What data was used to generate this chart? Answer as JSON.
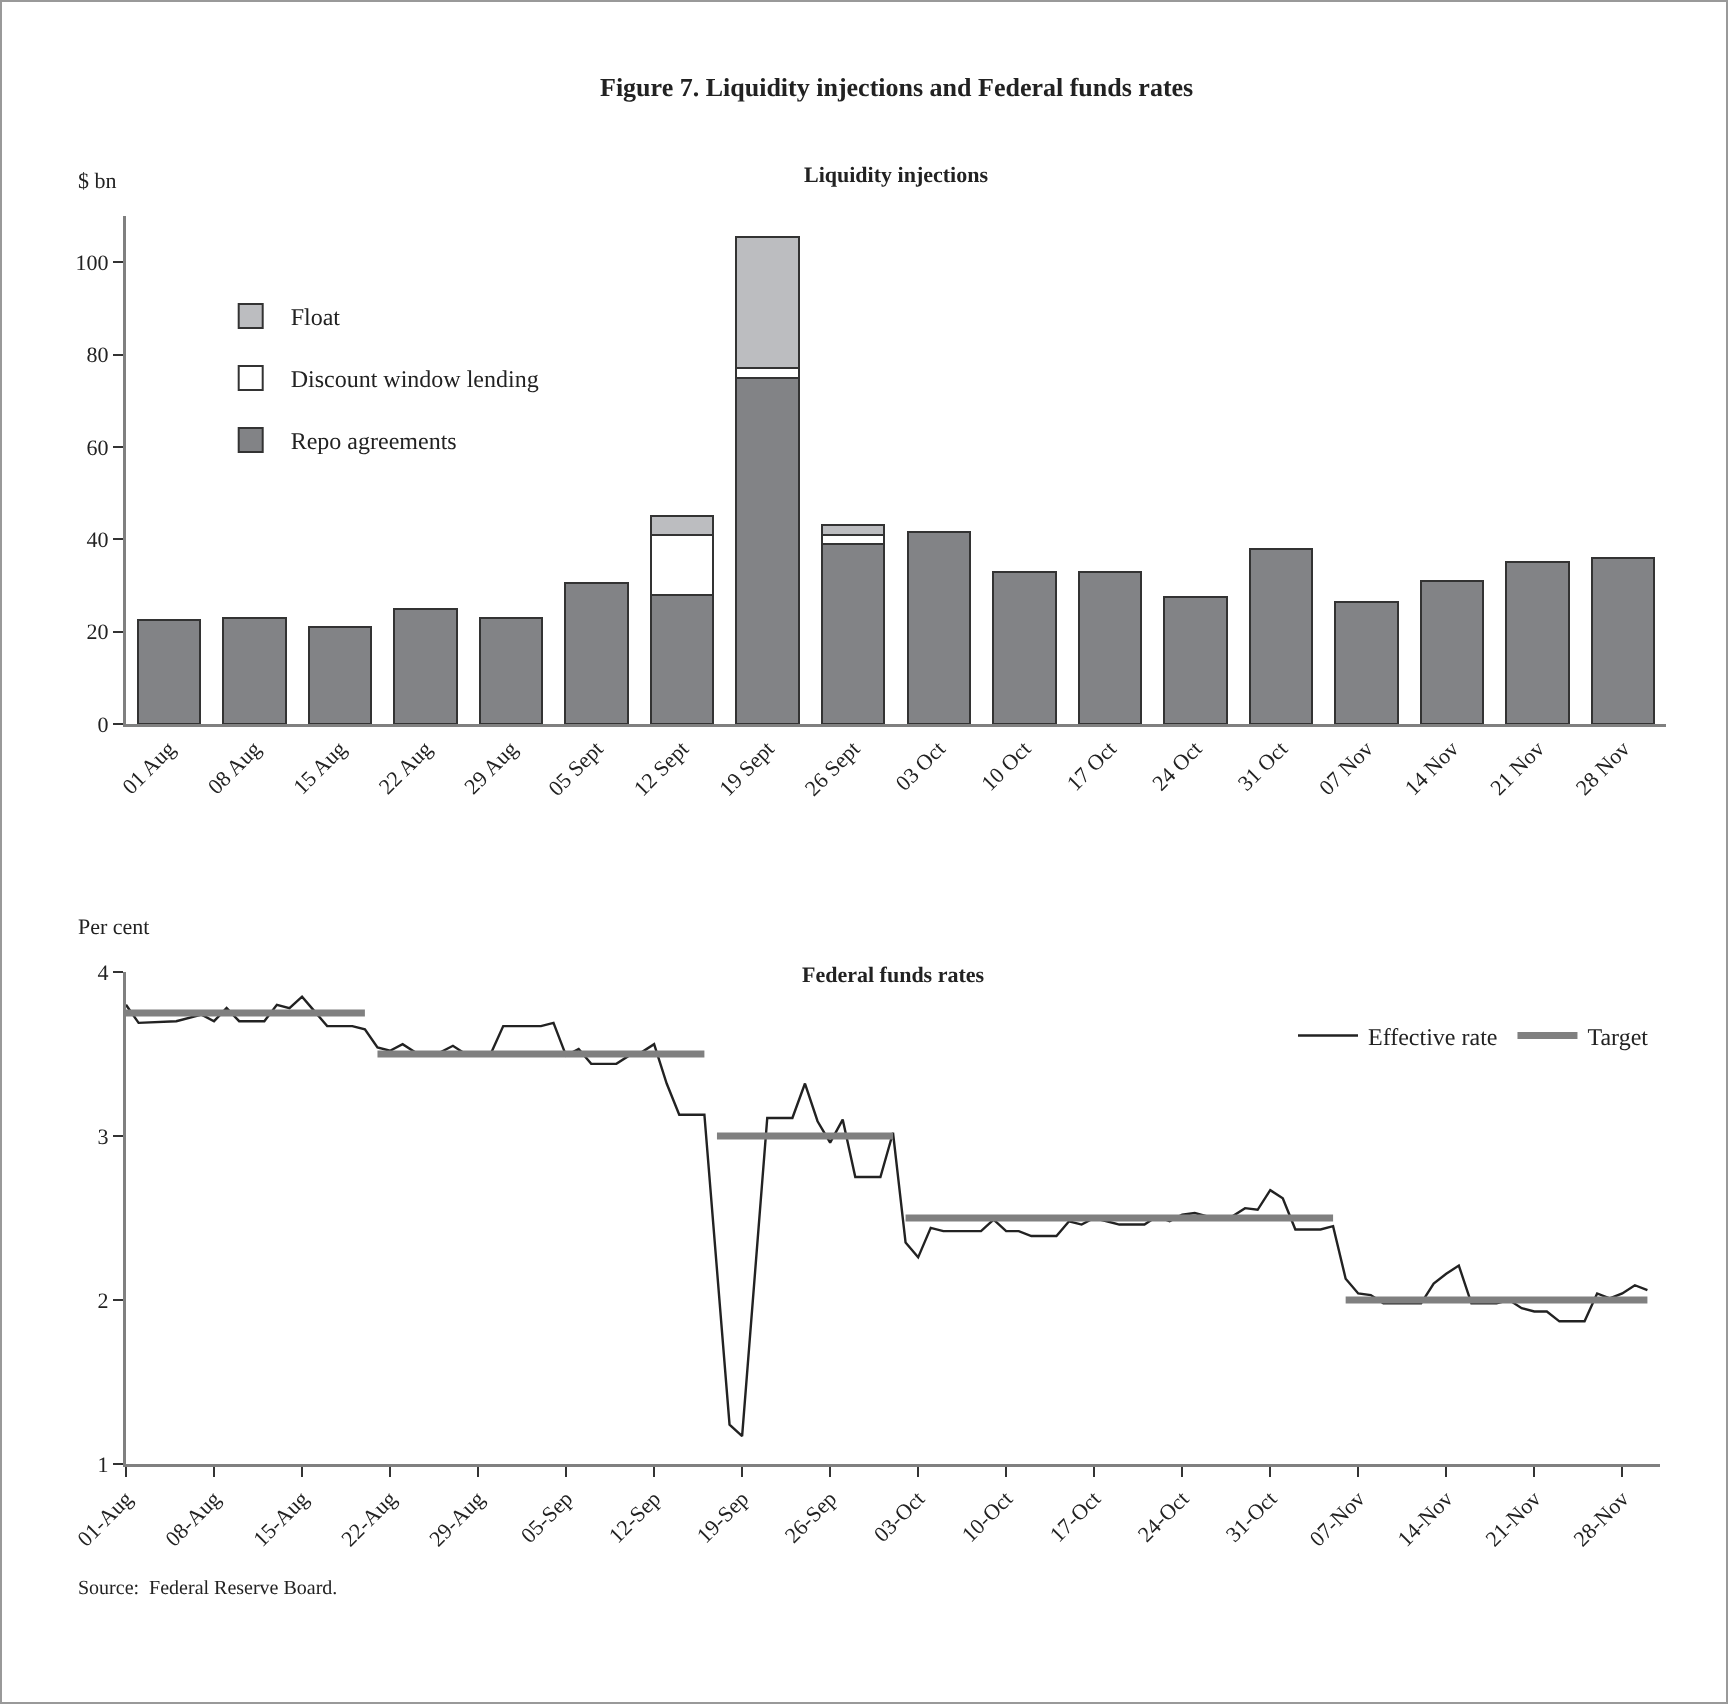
{
  "chart_data": [
    {
      "type": "bar",
      "title": "Figure 7. Liquidity injections and Federal funds rates",
      "subtitle": "Liquidity injections",
      "ylabel": "$ bn",
      "categories": [
        "01 Aug",
        "08 Aug",
        "15 Aug",
        "22 Aug",
        "29 Aug",
        "05 Sept",
        "12 Sept",
        "19 Sept",
        "26 Sept",
        "03 Oct",
        "10 Oct",
        "17 Oct",
        "24 Oct",
        "31 Oct",
        "07 Nov",
        "14 Nov",
        "21 Nov",
        "28 Nov"
      ],
      "stacked": true,
      "legend": "top left",
      "ylim": [
        0,
        110
      ],
      "yticks": [
        0,
        20,
        40,
        60,
        80,
        100
      ],
      "series": [
        {
          "name": "Repo agreements",
          "color": "#828386",
          "values": [
            22.5,
            23,
            21,
            25,
            23,
            30.5,
            28,
            75,
            39,
            41.5,
            33,
            33,
            27.5,
            38,
            26.5,
            31,
            35,
            36
          ]
        },
        {
          "name": "Discount window lending",
          "color": "#ffffff",
          "values": [
            null,
            null,
            null,
            null,
            null,
            null,
            13,
            2,
            2,
            null,
            null,
            null,
            null,
            null,
            null,
            null,
            null,
            null
          ]
        },
        {
          "name": "Float",
          "color": "#bcbdc0",
          "values": [
            null,
            null,
            null,
            null,
            null,
            null,
            4,
            28.5,
            2,
            null,
            null,
            null,
            null,
            null,
            null,
            null,
            null,
            null
          ]
        }
      ]
    },
    {
      "type": "line",
      "title": "Federal funds rates",
      "ylabel": "Per cent",
      "legend": "top right",
      "line_style": "solid",
      "xlim": [
        "--08-01",
        "--12-01"
      ],
      "xticks": [
        {
          "value": "--08-01",
          "label": "01-Aug"
        },
        {
          "value": "--08-08",
          "label": "08-Aug"
        },
        {
          "value": "--08-15",
          "label": "15-Aug"
        },
        {
          "value": "--08-22",
          "label": "22-Aug"
        },
        {
          "value": "--08-29",
          "label": "29-Aug"
        },
        {
          "value": "--09-05",
          "label": "05-Sep"
        },
        {
          "value": "--09-12",
          "label": "12-Sep"
        },
        {
          "value": "--09-19",
          "label": "19-Sep"
        },
        {
          "value": "--09-26",
          "label": "26-Sep"
        },
        {
          "value": "--10-03",
          "label": "03-Oct"
        },
        {
          "value": "--10-10",
          "label": "10-Oct"
        },
        {
          "value": "--10-17",
          "label": "17-Oct"
        },
        {
          "value": "--10-24",
          "label": "24-Oct"
        },
        {
          "value": "--10-31",
          "label": "31-Oct"
        },
        {
          "value": "--11-07",
          "label": "07-Nov"
        },
        {
          "value": "--11-14",
          "label": "14-Nov"
        },
        {
          "value": "--11-21",
          "label": "21-Nov"
        },
        {
          "value": "--11-28",
          "label": "28-Nov"
        }
      ],
      "ylim": [
        1,
        4
      ],
      "yticks": [
        1,
        2,
        3,
        4
      ],
      "series": [
        {
          "name": "Effective rate",
          "color": "#222222",
          "x": [
            "--08-01",
            "--08-02",
            "--08-05",
            "--08-07",
            "--08-08",
            "--08-09",
            "--08-10",
            "--08-12",
            "--08-13",
            "--08-14",
            "--08-15",
            "--08-16",
            "--08-17",
            "--08-19",
            "--08-20",
            "--08-21",
            "--08-22",
            "--08-23",
            "--08-24",
            "--08-26",
            "--08-27",
            "--08-28",
            "--08-30",
            "--08-31",
            "--09-03",
            "--09-04",
            "--09-05",
            "--09-06",
            "--09-07",
            "--09-09",
            "--09-10",
            "--09-11",
            "--09-12",
            "--09-13",
            "--09-14",
            "--09-16",
            "--09-18",
            "--09-19",
            "--09-21",
            "--09-23",
            "--09-24",
            "--09-25",
            "--09-26",
            "--09-27",
            "--09-28",
            "--09-30",
            "--10-01",
            "--10-02",
            "--10-03",
            "--10-04",
            "--10-05",
            "--10-08",
            "--10-09",
            "--10-10",
            "--10-11",
            "--10-12",
            "--10-14",
            "--10-15",
            "--10-16",
            "--10-17",
            "--10-18",
            "--10-19",
            "--10-21",
            "--10-22",
            "--10-23",
            "--10-24",
            "--10-25",
            "--10-26",
            "--10-28",
            "--10-29",
            "--10-30",
            "--10-31",
            "--11-01",
            "--11-02",
            "--11-04",
            "--11-05",
            "--11-06",
            "--11-07",
            "--11-08",
            "--11-09",
            "--11-12",
            "--11-13",
            "--11-14",
            "--11-15",
            "--11-16",
            "--11-18",
            "--11-19",
            "--11-20",
            "--11-21",
            "--11-22",
            "--11-23",
            "--11-25",
            "--11-26",
            "--11-27",
            "--11-28",
            "--11-29",
            "--11-30"
          ],
          "values": [
            3.8,
            3.69,
            3.7,
            3.74,
            3.7,
            3.78,
            3.7,
            3.7,
            3.8,
            3.78,
            3.85,
            3.76,
            3.67,
            3.67,
            3.65,
            3.54,
            3.52,
            3.56,
            3.51,
            3.51,
            3.55,
            3.5,
            3.5,
            3.67,
            3.67,
            3.69,
            3.49,
            3.53,
            3.44,
            3.44,
            3.49,
            3.51,
            3.56,
            3.32,
            3.13,
            3.13,
            1.24,
            1.17,
            3.11,
            3.11,
            3.32,
            3.09,
            2.96,
            3.1,
            2.75,
            2.75,
            3.02,
            2.35,
            2.26,
            2.44,
            2.42,
            2.42,
            2.49,
            2.42,
            2.42,
            2.39,
            2.39,
            2.48,
            2.46,
            2.5,
            2.48,
            2.46,
            2.46,
            2.51,
            2.48,
            2.52,
            2.53,
            2.51,
            2.51,
            2.56,
            2.55,
            2.67,
            2.62,
            2.43,
            2.43,
            2.45,
            2.13,
            2.04,
            2.03,
            1.98,
            1.98,
            2.1,
            2.16,
            2.21,
            1.98,
            1.98,
            2.0,
            1.95,
            1.93,
            1.93,
            1.87,
            1.87,
            2.04,
            2.01,
            2.04,
            2.09,
            2.06
          ]
        },
        {
          "name": "Target",
          "color": "#808080",
          "x": [
            "--08-01",
            "--08-20"
          ],
          "values": [
            3.75,
            3.75
          ]
        },
        {
          "color": "#808080",
          "x": [
            "--08-21",
            "--09-16"
          ],
          "values": [
            3.5,
            3.5
          ]
        },
        {
          "color": "#808080",
          "x": [
            "--09-17",
            "--10-01"
          ],
          "values": [
            3.0,
            3.0
          ]
        },
        {
          "color": "#808080",
          "x": [
            "--10-02",
            "--11-05"
          ],
          "values": [
            2.5,
            2.5
          ]
        },
        {
          "color": "#808080",
          "x": [
            "--11-06",
            "--11-30"
          ],
          "values": [
            2.0,
            2.0
          ]
        }
      ],
      "annotations": [
        "Source:  Federal Reserve Board."
      ]
    }
  ]
}
